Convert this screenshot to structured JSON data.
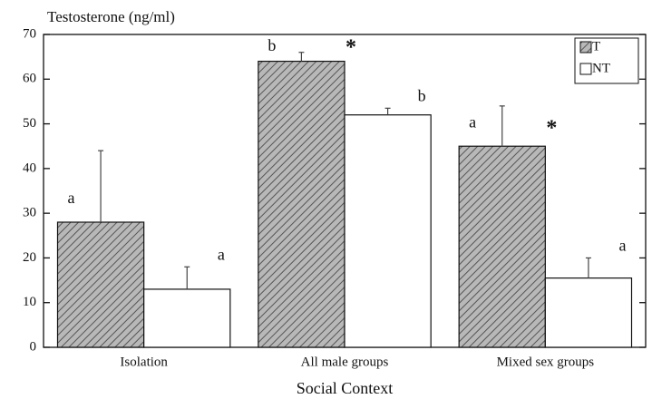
{
  "chart_data": {
    "type": "bar",
    "y_label": "Testosterone (ng/ml)",
    "x_label": "Social Context",
    "categories": [
      "Isolation",
      "All male groups",
      "Mixed sex groups"
    ],
    "series": [
      {
        "name": "T",
        "color": "#8a8a8a",
        "hatch": true,
        "values": [
          28,
          64,
          45
        ],
        "errors": [
          16,
          2,
          9
        ],
        "letters": [
          "a",
          "b",
          "a"
        ],
        "significance": [
          null,
          "*",
          "*"
        ]
      },
      {
        "name": "NT",
        "color": "#ffffff",
        "hatch": false,
        "values": [
          13,
          52,
          15.5
        ],
        "errors": [
          5,
          1.5,
          4.5
        ],
        "letters": [
          "a",
          "b",
          "a"
        ]
      }
    ],
    "ylim": [
      0,
      70
    ],
    "yticks": [
      0,
      10,
      20,
      30,
      40,
      50,
      60,
      70
    ],
    "legend": "upper right"
  }
}
